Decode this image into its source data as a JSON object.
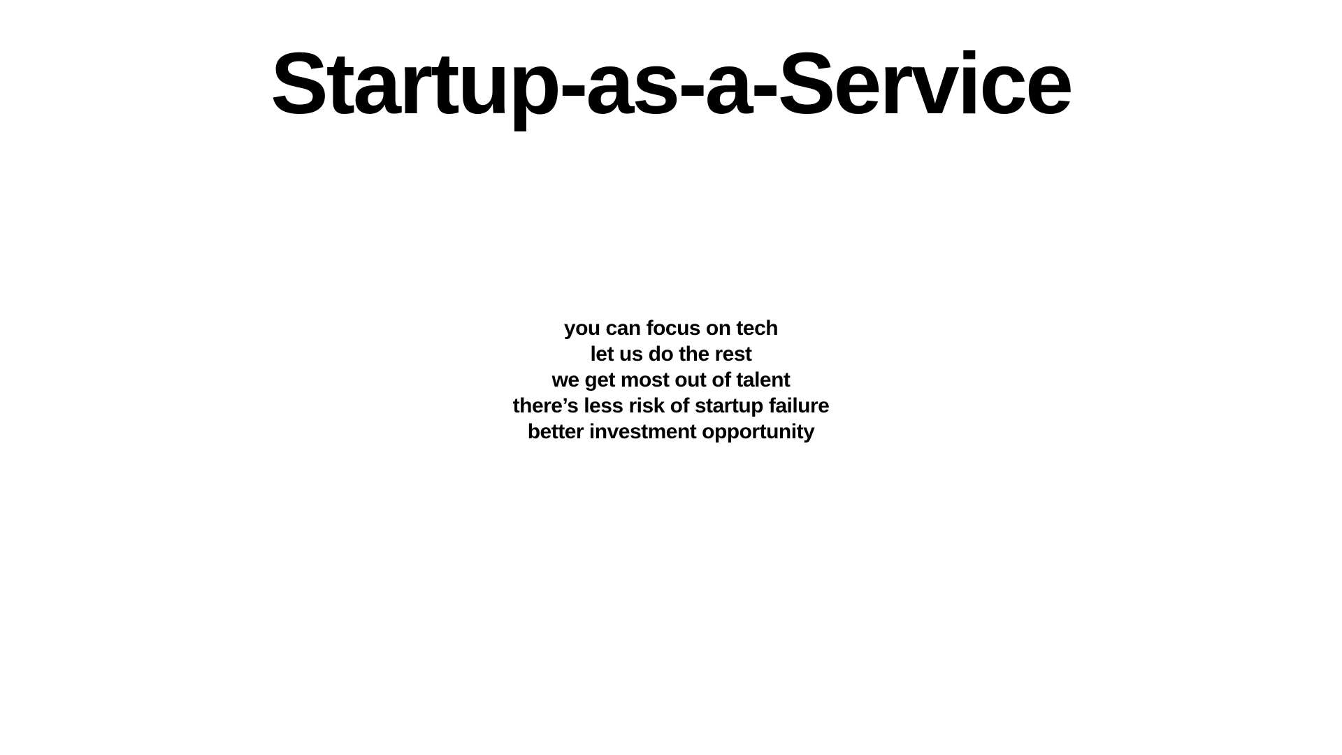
{
  "slide": {
    "title": "Startup-as-a-Service",
    "points": [
      "you can focus on tech",
      "let us do the rest",
      "we get most out of talent",
      "there’s less risk of startup failure",
      "better investment opportunity"
    ]
  },
  "colors": {
    "background": "#ffffff",
    "text": "#000000"
  }
}
